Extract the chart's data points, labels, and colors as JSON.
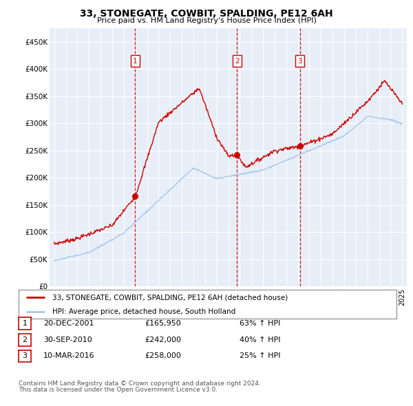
{
  "title": "33, STONEGATE, COWBIT, SPALDING, PE12 6AH",
  "subtitle": "Price paid vs. HM Land Registry's House Price Index (HPI)",
  "legend_line1": "33, STONEGATE, COWBIT, SPALDING, PE12 6AH (detached house)",
  "legend_line2": "HPI: Average price, detached house, South Holland",
  "footer1": "Contains HM Land Registry data © Crown copyright and database right 2024.",
  "footer2": "This data is licensed under the Open Government Licence v3.0.",
  "transactions": [
    {
      "num": 1,
      "date": "20-DEC-2001",
      "price": "£165,950",
      "pct": "63% ↑ HPI",
      "year": 2001.97
    },
    {
      "num": 2,
      "date": "30-SEP-2010",
      "price": "£242,000",
      "pct": "40% ↑ HPI",
      "year": 2010.75
    },
    {
      "num": 3,
      "date": "10-MAR-2016",
      "price": "£258,000",
      "pct": "25% ↑ HPI",
      "year": 2016.19
    }
  ],
  "transaction_prices": [
    165950,
    242000,
    258000
  ],
  "vline_color": "#cc0000",
  "hpi_color": "#a8c8e8",
  "price_color": "#cc0000",
  "dot_color": "#cc0000",
  "ylim": [
    0,
    475000
  ],
  "yticks": [
    0,
    50000,
    100000,
    150000,
    200000,
    250000,
    300000,
    350000,
    400000,
    450000
  ],
  "ylabels": [
    "£0",
    "£50K",
    "£100K",
    "£150K",
    "£200K",
    "£250K",
    "£300K",
    "£350K",
    "£400K",
    "£450K"
  ],
  "background_color": "#e8eef8",
  "xlim_left": 1994.6,
  "xlim_right": 2025.4
}
